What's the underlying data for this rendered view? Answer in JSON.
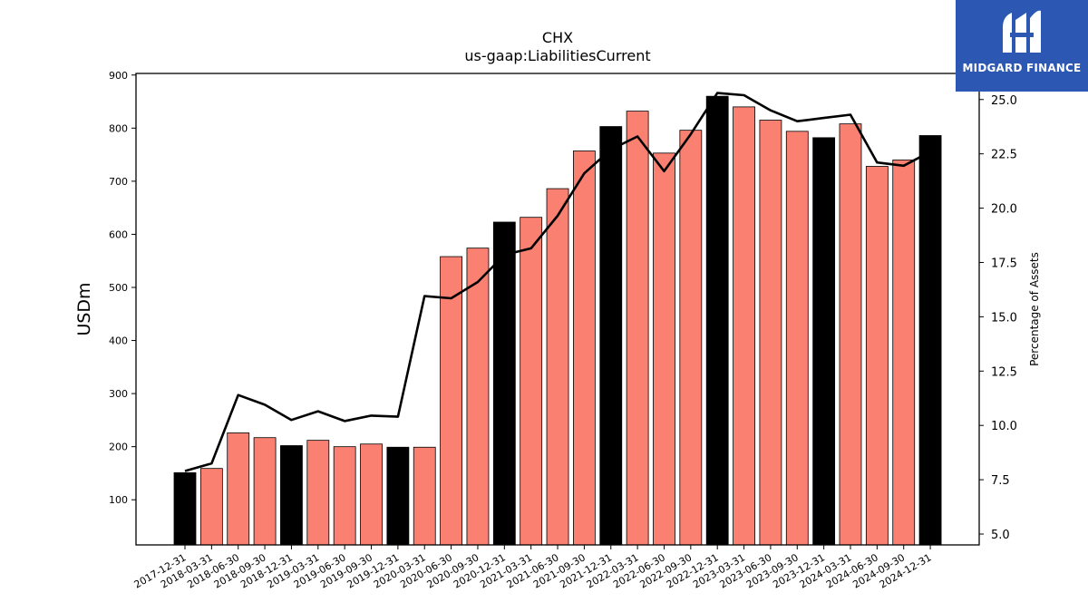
{
  "chart_data": {
    "type": "bar",
    "title": "CHX",
    "subtitle": "us-gaap:LiabilitiesCurrent",
    "ylabel": "USDm",
    "y2label": "Percentage of Assets",
    "ylim": [
      15,
      903
    ],
    "y2lim": [
      4.5,
      26.2
    ],
    "yticks": [
      100,
      200,
      300,
      400,
      500,
      600,
      700,
      800,
      900
    ],
    "y2ticks": [
      "5.0",
      "7.5",
      "10.0",
      "12.5",
      "15.0",
      "17.5",
      "20.0",
      "22.5",
      "25.0"
    ],
    "categories": [
      "2017-12-31",
      "2018-03-31",
      "2018-06-30",
      "2018-09-30",
      "2018-12-31",
      "2019-03-31",
      "2019-06-30",
      "2019-09-30",
      "2019-12-31",
      "2020-03-31",
      "2020-06-30",
      "2020-09-30",
      "2020-12-31",
      "2021-03-31",
      "2021-06-30",
      "2021-09-30",
      "2021-12-31",
      "2022-03-31",
      "2022-06-30",
      "2022-09-30",
      "2022-12-31",
      "2023-03-31",
      "2023-06-30",
      "2023-09-30",
      "2023-12-31",
      "2024-03-31",
      "2024-06-30",
      "2024-09-30",
      "2024-12-31"
    ],
    "values": [
      151,
      159,
      226,
      217,
      202,
      212,
      200,
      205,
      199,
      199,
      558,
      574,
      623,
      632,
      686,
      757,
      803,
      832,
      753,
      796,
      860,
      840,
      815,
      794,
      782,
      808,
      728,
      740,
      786
    ],
    "annual": [
      true,
      false,
      false,
      false,
      true,
      false,
      false,
      false,
      true,
      false,
      false,
      false,
      true,
      false,
      false,
      false,
      true,
      false,
      false,
      false,
      true,
      false,
      false,
      false,
      true,
      false,
      false,
      false,
      true
    ],
    "percent_of_assets": [
      7.9,
      8.25,
      11.4,
      10.95,
      10.25,
      10.65,
      10.2,
      10.45,
      10.4,
      15.95,
      15.85,
      16.6,
      17.85,
      18.15,
      19.65,
      21.6,
      22.7,
      23.3,
      21.7,
      23.4,
      25.3,
      25.2,
      24.5,
      24.0,
      24.15,
      24.3,
      22.1,
      21.95,
      22.6
    ],
    "colors": {
      "annual_bar": "#000000",
      "quarter_bar": "#fa8072",
      "bar_edge": "#000000",
      "line": "#000000"
    },
    "grid": false,
    "legend": "none"
  },
  "logo": {
    "text": "MIDGARD FINANCE",
    "background": "#2c57b3"
  }
}
